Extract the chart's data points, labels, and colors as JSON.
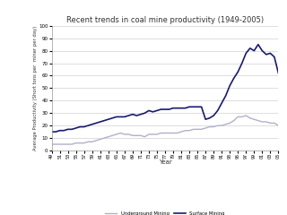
{
  "title": "Recent trends in coal mine productivity (1949-2005)",
  "xlabel": "Year",
  "ylabel": "Average Productivity (Short tons per  miner per day)",
  "ylim": [
    0,
    100
  ],
  "yticks": [
    0,
    10,
    20,
    30,
    40,
    50,
    60,
    70,
    80,
    90,
    100
  ],
  "underground_color": "#b0b0cc",
  "surface_color": "#1a1a6e",
  "bg_color": "#ffffff",
  "legend_underground": "Underground Mining",
  "legend_surface": "Surface Mining",
  "underground_years": [
    1949,
    1950,
    1951,
    1952,
    1953,
    1954,
    1955,
    1956,
    1957,
    1958,
    1959,
    1960,
    1961,
    1962,
    1963,
    1964,
    1965,
    1966,
    1967,
    1968,
    1969,
    1970,
    1971,
    1972,
    1973,
    1974,
    1975,
    1976,
    1977,
    1978,
    1979,
    1980,
    1981,
    1982,
    1983,
    1984,
    1985,
    1986,
    1987,
    1988,
    1989,
    1990,
    1991,
    1992,
    1993,
    1994,
    1995,
    1996,
    1997,
    1998,
    1999,
    2000,
    2001,
    2002,
    2003,
    2004,
    2005
  ],
  "underground_values": [
    5,
    5,
    5,
    5,
    5,
    5,
    6,
    6,
    6,
    7,
    7,
    8,
    9,
    10,
    11,
    12,
    13,
    14,
    13,
    13,
    12,
    12,
    12,
    11,
    13,
    13,
    13,
    14,
    14,
    14,
    14,
    14,
    15,
    16,
    16,
    17,
    17,
    17,
    18,
    19,
    19,
    20,
    20,
    21,
    22,
    24,
    27,
    27,
    28,
    26,
    25,
    24,
    23,
    23,
    22,
    22,
    20
  ],
  "surface_years": [
    1949,
    1950,
    1951,
    1952,
    1953,
    1954,
    1955,
    1956,
    1957,
    1958,
    1959,
    1960,
    1961,
    1962,
    1963,
    1964,
    1965,
    1966,
    1967,
    1968,
    1969,
    1970,
    1971,
    1972,
    1973,
    1974,
    1975,
    1976,
    1977,
    1978,
    1979,
    1980,
    1981,
    1982,
    1983,
    1984,
    1985,
    1986,
    1987,
    1988,
    1989,
    1990,
    1991,
    1992,
    1993,
    1994,
    1995,
    1996,
    1997,
    1998,
    1999,
    2000,
    2001,
    2002,
    2003,
    2004,
    2005
  ],
  "surface_values": [
    15,
    15,
    16,
    16,
    17,
    17,
    18,
    19,
    19,
    20,
    21,
    22,
    23,
    24,
    25,
    26,
    27,
    27,
    27,
    28,
    29,
    28,
    29,
    30,
    32,
    31,
    32,
    33,
    33,
    33,
    34,
    34,
    34,
    34,
    35,
    35,
    35,
    35,
    25,
    26,
    28,
    32,
    38,
    44,
    52,
    58,
    63,
    70,
    78,
    82,
    80,
    85,
    80,
    77,
    78,
    75,
    62
  ]
}
